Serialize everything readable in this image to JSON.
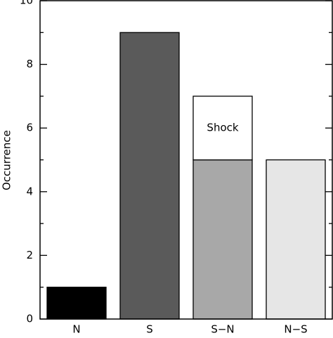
{
  "chart_data": {
    "type": "bar",
    "y_label": "Occurrence",
    "categories": [
      "N",
      "S",
      "S−N",
      "N−S"
    ],
    "series": [
      {
        "values": [
          1,
          9,
          5,
          5
        ],
        "colors": [
          "#000000",
          "#5a5a5a",
          "#a8a8a8",
          "#e6e6e6"
        ]
      },
      {
        "name": "Shock",
        "values": [
          null,
          null,
          2,
          null
        ],
        "color": "#ffffff"
      }
    ],
    "ylim": [
      0,
      10
    ],
    "yticks": [
      0,
      2,
      4,
      6,
      8,
      10
    ],
    "yminorticks": [
      1,
      3,
      5,
      7,
      9
    ]
  }
}
